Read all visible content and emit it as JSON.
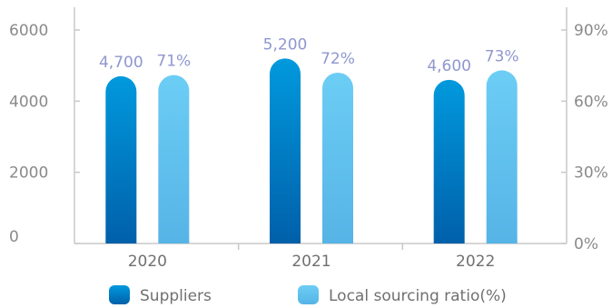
{
  "chart_data": {
    "type": "bar",
    "categories": [
      "2020",
      "2021",
      "2022"
    ],
    "series": [
      {
        "name": "Suppliers",
        "axis": "left",
        "values": [
          4700,
          5200,
          4600
        ],
        "labels": [
          "4,700",
          "5,200",
          "4,600"
        ],
        "color_top": "#0199dd",
        "color_bottom": "#0060aa"
      },
      {
        "name": "Local sourcing ratio(%)",
        "axis": "right",
        "values": [
          71,
          72,
          73
        ],
        "labels": [
          "71%",
          "72%",
          "73%"
        ],
        "color_top": "#6ccdf5",
        "color_bottom": "#56b4e6"
      }
    ],
    "y_left": {
      "ticks": [
        "0",
        "2000",
        "4000",
        "6000"
      ],
      "tick_values": [
        0,
        2000,
        4000,
        6000
      ],
      "lim": [
        0,
        6000
      ]
    },
    "y_right": {
      "ticks": [
        "0%",
        "30%",
        "60%",
        "90%"
      ],
      "tick_values": [
        0,
        30,
        60,
        90
      ],
      "lim": [
        0,
        90
      ]
    },
    "legend_position": "bottom-center",
    "grid": false
  }
}
